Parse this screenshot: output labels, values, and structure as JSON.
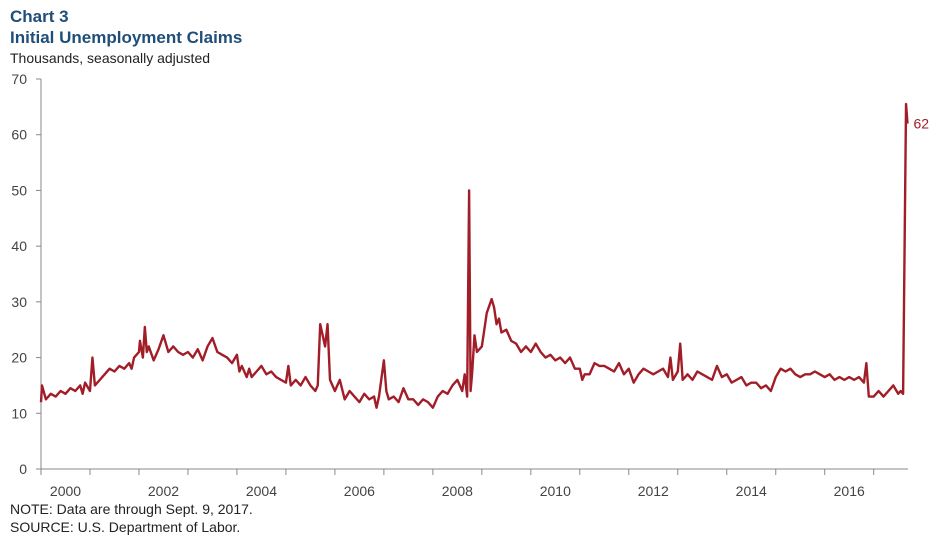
{
  "chart_data": {
    "type": "line",
    "title": "Chart 3",
    "subtitle": "Initial Unemployment Claims",
    "ylabel": "Thousands, seasonally adjusted",
    "notes": [
      "NOTE: Data are through  Sept. 9, 2017.",
      "SOURCE: U.S. Department of Labor."
    ],
    "annotation": "62",
    "xlim": [
      2000,
      2017.7
    ],
    "xticks": [
      {
        "value": 2000.5,
        "label": "2000"
      },
      {
        "value": 2002.5,
        "label": "2002"
      },
      {
        "value": 2004.5,
        "label": "2004"
      },
      {
        "value": 2006.5,
        "label": "2006"
      },
      {
        "value": 2008.5,
        "label": "2008"
      },
      {
        "value": 2010.5,
        "label": "2010"
      },
      {
        "value": 2012.5,
        "label": "2012"
      },
      {
        "value": 2014.5,
        "label": "2014"
      },
      {
        "value": 2016.5,
        "label": "2016"
      }
    ],
    "xminor_ticks": [
      2000,
      2001,
      2002,
      2003,
      2004,
      2005,
      2006,
      2007,
      2008,
      2009,
      2010,
      2011,
      2012,
      2013,
      2014,
      2015,
      2016,
      2017
    ],
    "ylim": [
      0,
      70
    ],
    "yticks": [
      0,
      10,
      20,
      30,
      40,
      50,
      60,
      70
    ],
    "grid": false,
    "series": [
      {
        "name": "Initial claims",
        "color": "#a11d27",
        "x": [
          2000.0,
          2000.02,
          2000.1,
          2000.2,
          2000.3,
          2000.4,
          2000.5,
          2000.6,
          2000.7,
          2000.8,
          2000.85,
          2000.9,
          2001.0,
          2001.05,
          2001.1,
          2001.2,
          2001.3,
          2001.4,
          2001.5,
          2001.6,
          2001.7,
          2001.8,
          2001.85,
          2001.9,
          2002.0,
          2002.02,
          2002.08,
          2002.12,
          2002.16,
          2002.2,
          2002.3,
          2002.4,
          2002.5,
          2002.6,
          2002.7,
          2002.8,
          2002.9,
          2003.0,
          2003.1,
          2003.2,
          2003.3,
          2003.4,
          2003.5,
          2003.6,
          2003.7,
          2003.8,
          2003.9,
          2004.0,
          2004.05,
          2004.1,
          2004.2,
          2004.25,
          2004.3,
          2004.4,
          2004.5,
          2004.6,
          2004.7,
          2004.8,
          2004.9,
          2005.0,
          2005.05,
          2005.1,
          2005.2,
          2005.3,
          2005.4,
          2005.5,
          2005.6,
          2005.65,
          2005.7,
          2005.8,
          2005.85,
          2005.9,
          2006.0,
          2006.1,
          2006.2,
          2006.3,
          2006.4,
          2006.5,
          2006.6,
          2006.7,
          2006.8,
          2006.85,
          2006.9,
          2007.0,
          2007.05,
          2007.1,
          2007.2,
          2007.3,
          2007.4,
          2007.5,
          2007.6,
          2007.7,
          2007.8,
          2007.9,
          2008.0,
          2008.1,
          2008.2,
          2008.3,
          2008.4,
          2008.5,
          2008.6,
          2008.65,
          2008.7,
          2008.74,
          2008.77,
          2008.8,
          2008.85,
          2008.9,
          2009.0,
          2009.1,
          2009.2,
          2009.25,
          2009.3,
          2009.35,
          2009.4,
          2009.5,
          2009.6,
          2009.7,
          2009.8,
          2009.9,
          2010.0,
          2010.1,
          2010.2,
          2010.3,
          2010.4,
          2010.5,
          2010.6,
          2010.7,
          2010.8,
          2010.9,
          2011.0,
          2011.05,
          2011.1,
          2011.2,
          2011.3,
          2011.4,
          2011.5,
          2011.6,
          2011.7,
          2011.8,
          2011.9,
          2012.0,
          2012.1,
          2012.2,
          2012.3,
          2012.4,
          2012.5,
          2012.6,
          2012.7,
          2012.8,
          2012.85,
          2012.9,
          2013.0,
          2013.05,
          2013.1,
          2013.2,
          2013.3,
          2013.4,
          2013.5,
          2013.6,
          2013.7,
          2013.8,
          2013.9,
          2014.0,
          2014.1,
          2014.2,
          2014.3,
          2014.4,
          2014.5,
          2014.6,
          2014.7,
          2014.8,
          2014.9,
          2015.0,
          2015.1,
          2015.2,
          2015.3,
          2015.4,
          2015.5,
          2015.6,
          2015.7,
          2015.8,
          2015.9,
          2016.0,
          2016.1,
          2016.2,
          2016.3,
          2016.4,
          2016.5,
          2016.6,
          2016.7,
          2016.8,
          2016.85,
          2016.9,
          2017.0,
          2017.1,
          2017.2,
          2017.3,
          2017.4,
          2017.5,
          2017.55,
          2017.6,
          2017.66,
          2017.69
        ],
        "values": [
          12,
          15,
          12.5,
          13.5,
          13,
          14,
          13.5,
          14.5,
          14,
          15,
          13.5,
          15.5,
          14,
          20,
          15,
          16,
          17,
          18,
          17.5,
          18.5,
          18,
          19,
          18,
          20,
          21,
          23,
          20,
          25.5,
          21,
          22,
          19.5,
          21.5,
          24,
          21,
          22,
          21,
          20.5,
          21,
          20,
          21.5,
          19.5,
          22,
          23.5,
          21,
          20.5,
          20,
          19,
          20.5,
          17.5,
          18.5,
          16.5,
          18,
          16.5,
          17.5,
          18.5,
          17,
          17.5,
          16.5,
          16,
          15.5,
          18.5,
          15,
          16,
          15,
          16.5,
          15,
          14,
          15,
          26,
          22,
          26,
          16,
          14,
          16,
          12.5,
          14,
          13,
          12,
          13.5,
          12.5,
          13,
          11,
          13,
          19.5,
          14,
          12.5,
          13,
          12,
          14.5,
          12.5,
          12.5,
          11.5,
          12.5,
          12,
          11,
          13,
          14,
          13.5,
          15,
          16,
          14,
          17,
          13,
          50,
          14,
          17,
          24,
          21,
          22,
          28,
          30.5,
          29,
          26,
          27,
          24.5,
          25,
          23,
          22.5,
          21,
          22,
          21,
          22.5,
          21,
          20,
          20.5,
          19.5,
          20,
          19,
          20,
          18,
          18,
          16,
          17,
          17,
          19,
          18.5,
          18.5,
          18,
          17.5,
          19,
          17,
          18,
          15.5,
          17,
          18,
          17.5,
          17,
          17.5,
          18,
          16.5,
          20,
          16,
          17.5,
          22.5,
          16,
          17,
          16,
          17.5,
          17,
          16.5,
          16,
          18.5,
          16.5,
          17,
          15.5,
          16,
          16.5,
          15,
          15.5,
          15.5,
          14.5,
          15,
          14,
          16.5,
          18,
          17.5,
          18,
          17,
          16.5,
          17,
          17,
          17.5,
          17,
          16.5,
          17,
          16,
          16.5,
          16,
          16.5,
          16,
          16.5,
          15.5,
          19,
          13,
          13,
          14,
          13,
          14,
          15,
          13.5,
          14,
          13.5,
          65.5,
          62
        ]
      }
    ]
  }
}
